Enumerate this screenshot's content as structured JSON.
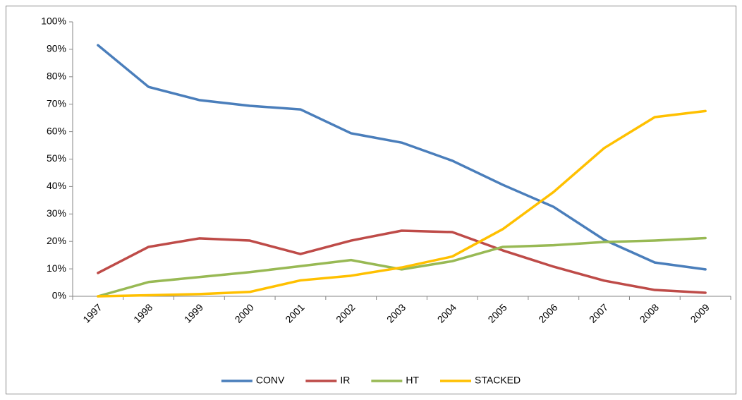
{
  "chart_data": {
    "type": "line",
    "categories": [
      "1997",
      "1998",
      "1999",
      "2000",
      "2001",
      "2002",
      "2003",
      "2004",
      "2005",
      "2006",
      "2007",
      "2008",
      "2009"
    ],
    "series": [
      {
        "name": "CONV",
        "color": "#4a7ebb",
        "values": [
          91.5,
          76.3,
          71.5,
          69.4,
          68.1,
          59.4,
          56,
          49.4,
          40.6,
          32.6,
          20.6,
          12.3,
          9.8
        ]
      },
      {
        "name": "IR",
        "color": "#be4b48",
        "values": [
          8.5,
          18,
          21.1,
          20.3,
          15.4,
          20.3,
          23.9,
          23.4,
          16.7,
          10.8,
          5.7,
          2.3,
          1.3
        ]
      },
      {
        "name": "HT",
        "color": "#98b954",
        "values": [
          0,
          5.2,
          7,
          8.8,
          11,
          13.2,
          9.8,
          12.8,
          18,
          18.6,
          19.8,
          20.3,
          21.2
        ]
      },
      {
        "name": "STACKED",
        "color": "#ffc000",
        "values": [
          0,
          0.4,
          0.8,
          1.6,
          5.8,
          7.5,
          10.5,
          14.5,
          24.5,
          38,
          54,
          65.3,
          67.5
        ]
      }
    ],
    "ylim": [
      0,
      100
    ],
    "yticks": [
      {
        "value": 0,
        "label": "0%"
      },
      {
        "value": 10,
        "label": "10%"
      },
      {
        "value": 20,
        "label": "20%"
      },
      {
        "value": 30,
        "label": "30%"
      },
      {
        "value": 40,
        "label": "40%"
      },
      {
        "value": 50,
        "label": "50%"
      },
      {
        "value": 60,
        "label": "60%"
      },
      {
        "value": 70,
        "label": "70%"
      },
      {
        "value": 80,
        "label": "80%"
      },
      {
        "value": 90,
        "label": "90%"
      },
      {
        "value": 100,
        "label": "100%"
      }
    ],
    "grid": false,
    "legend": "bottom"
  }
}
